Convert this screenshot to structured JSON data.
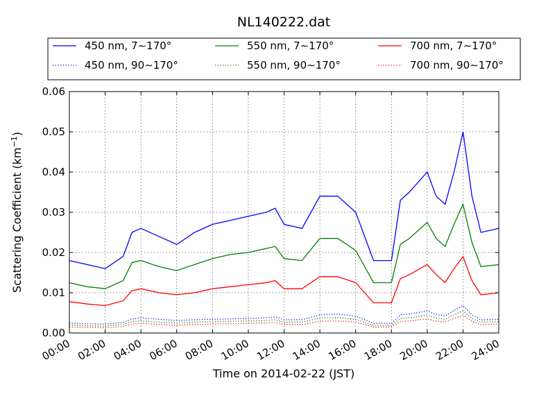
{
  "chart_data": {
    "type": "line",
    "title": "NL140222.dat",
    "xlabel": "Time on 2014-02-22 (JST)",
    "ylabel": "Scattering Coefficient (km",
    "ylabel_sup": "−1",
    "ylabel_end": ")",
    "xlim": [
      "00:00",
      "24:00"
    ],
    "ylim": [
      0,
      0.06
    ],
    "grid": true,
    "legend_position": "top",
    "x_ticks": [
      "00:00",
      "02:00",
      "04:00",
      "06:00",
      "08:00",
      "10:00",
      "12:00",
      "14:00",
      "16:00",
      "18:00",
      "20:00",
      "22:00",
      "24:00"
    ],
    "y_ticks": [
      "0.00",
      "0.01",
      "0.02",
      "0.03",
      "0.04",
      "0.05",
      "0.06"
    ],
    "x": [
      "00:00",
      "01:00",
      "02:00",
      "03:00",
      "03:30",
      "04:00",
      "05:00",
      "06:00",
      "07:00",
      "08:00",
      "09:00",
      "10:00",
      "11:00",
      "11:30",
      "12:00",
      "13:00",
      "14:00",
      "15:00",
      "16:00",
      "17:00",
      "18:00",
      "18:30",
      "19:00",
      "20:00",
      "20:30",
      "21:00",
      "21:30",
      "22:00",
      "22:30",
      "23:00",
      "24:00"
    ],
    "series": [
      {
        "name": "450 nm, 7∼170°",
        "color": "#0000ff",
        "style": "solid",
        "values": [
          0.018,
          0.017,
          0.016,
          0.019,
          0.025,
          0.026,
          0.024,
          0.022,
          0.025,
          0.027,
          0.028,
          0.029,
          0.03,
          0.031,
          0.027,
          0.026,
          0.034,
          0.034,
          0.03,
          0.018,
          0.018,
          0.033,
          0.035,
          0.04,
          0.034,
          0.032,
          0.04,
          0.05,
          0.034,
          0.025,
          0.026
        ]
      },
      {
        "name": "550 nm, 7∼170°",
        "color": "#008000",
        "style": "solid",
        "values": [
          0.0125,
          0.0115,
          0.011,
          0.013,
          0.0175,
          0.018,
          0.0165,
          0.0155,
          0.017,
          0.0185,
          0.0195,
          0.02,
          0.021,
          0.0215,
          0.0185,
          0.018,
          0.0235,
          0.0235,
          0.0205,
          0.0125,
          0.0125,
          0.022,
          0.0235,
          0.0275,
          0.0235,
          0.0215,
          0.027,
          0.032,
          0.0225,
          0.0165,
          0.017
        ]
      },
      {
        "name": "700 nm, 7∼170°",
        "color": "#ff0000",
        "style": "solid",
        "values": [
          0.0078,
          0.0072,
          0.0068,
          0.008,
          0.0105,
          0.011,
          0.01,
          0.0095,
          0.01,
          0.011,
          0.0115,
          0.012,
          0.0125,
          0.013,
          0.011,
          0.011,
          0.014,
          0.014,
          0.0125,
          0.0075,
          0.0075,
          0.0135,
          0.0145,
          0.017,
          0.0145,
          0.0125,
          0.016,
          0.019,
          0.013,
          0.0095,
          0.01
        ]
      },
      {
        "name": "450 nm, 90∼170°",
        "color": "#0000ff",
        "style": "dotted",
        "values": [
          0.0025,
          0.0023,
          0.0022,
          0.0026,
          0.0035,
          0.0038,
          0.0034,
          0.0031,
          0.0033,
          0.0034,
          0.0035,
          0.0036,
          0.0038,
          0.004,
          0.0033,
          0.0033,
          0.0045,
          0.0047,
          0.0042,
          0.0024,
          0.0024,
          0.0045,
          0.0047,
          0.0055,
          0.0046,
          0.0042,
          0.0056,
          0.0068,
          0.0045,
          0.0033,
          0.0034
        ]
      },
      {
        "name": "550 nm, 90∼170°",
        "color": "#008000",
        "style": "dotted",
        "values": [
          0.002,
          0.0018,
          0.0017,
          0.0021,
          0.0028,
          0.003,
          0.0027,
          0.0025,
          0.0027,
          0.0028,
          0.0029,
          0.003,
          0.0031,
          0.0033,
          0.0027,
          0.0027,
          0.0037,
          0.0038,
          0.0034,
          0.0019,
          0.0019,
          0.0036,
          0.0038,
          0.0044,
          0.0037,
          0.0034,
          0.0045,
          0.0055,
          0.0036,
          0.0027,
          0.0028
        ]
      },
      {
        "name": "700 nm, 90∼170°",
        "color": "#ff0000",
        "style": "dotted",
        "values": [
          0.0015,
          0.0014,
          0.0013,
          0.0016,
          0.0022,
          0.0024,
          0.0021,
          0.0019,
          0.0021,
          0.0022,
          0.0023,
          0.0024,
          0.0025,
          0.0026,
          0.0021,
          0.0021,
          0.0029,
          0.003,
          0.0027,
          0.0015,
          0.0015,
          0.0028,
          0.003,
          0.0035,
          0.0029,
          0.0027,
          0.0036,
          0.0044,
          0.0029,
          0.0021,
          0.0022
        ]
      }
    ]
  }
}
